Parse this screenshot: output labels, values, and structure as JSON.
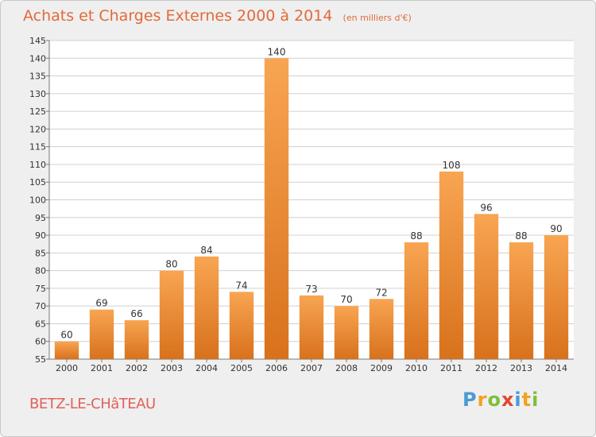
{
  "chart_data": {
    "type": "bar",
    "title": "Achats et Charges Externes 2000 à 2014",
    "subtitle": "(en milliers d'€)",
    "categories": [
      "2000",
      "2001",
      "2002",
      "2003",
      "2004",
      "2005",
      "2006",
      "2007",
      "2008",
      "2009",
      "2010",
      "2011",
      "2012",
      "2013",
      "2014"
    ],
    "values": [
      60,
      69,
      66,
      80,
      84,
      74,
      140,
      73,
      70,
      72,
      88,
      108,
      96,
      88,
      90
    ],
    "ylim": [
      55,
      145
    ],
    "yticks": [
      55,
      60,
      65,
      70,
      75,
      80,
      85,
      90,
      95,
      100,
      105,
      110,
      115,
      120,
      125,
      130,
      135,
      140,
      145
    ],
    "grid": true,
    "bar_color_top": "#f8a552",
    "bar_color_bottom": "#d8711c"
  },
  "commune": "BETZ-LE-CHâTEAU",
  "brand": {
    "letters": [
      "P",
      "r",
      "o",
      "x",
      "i",
      "t",
      "i"
    ],
    "colors": [
      "#4a9ad4",
      "#f3a21f",
      "#7fbf3a",
      "#e2462f",
      "#4a9ad4",
      "#f3a21f",
      "#7fbf3a"
    ]
  }
}
